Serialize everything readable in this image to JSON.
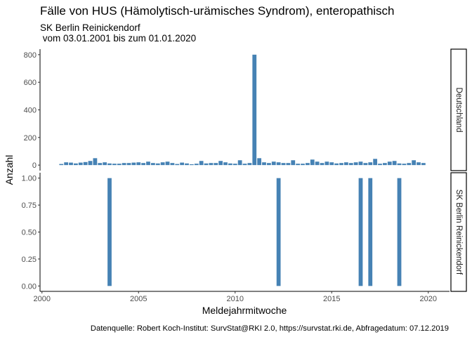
{
  "chart_data": {
    "type": "bar",
    "title": "Fälle von HUS (Hämolytisch-urämisches Syndrom), enteropathisch",
    "subtitle_line1": "SK Berlin Reinickendorf",
    "subtitle_line2": " vom 03.01.2001 bis zum 01.01.2020",
    "xlabel": "Meldejahrmitwoche",
    "ylabel": "Anzahl",
    "caption": "Datenquelle: Robert Koch-Institut: SurvStat@RKI 2.0, https://survstat.rki.de, Abfragedatum: 07.12.2019",
    "xlim": [
      1999.9,
      2021.1
    ],
    "x_ticks": [
      2000,
      2005,
      2010,
      2015,
      2020
    ],
    "x_tick_labels": [
      "2000",
      "2005",
      "2010",
      "2015",
      "2020"
    ],
    "bar_width": 0.21,
    "bar_color": "#4682b4",
    "grid": false,
    "panels": [
      {
        "strip": "Deutschland",
        "ylim": [
          -40,
          840
        ],
        "y_ticks": [
          0,
          200,
          400,
          600,
          800
        ],
        "y_tick_labels": [
          "0",
          "200",
          "400",
          "600",
          "800"
        ],
        "x": [
          2001.0,
          2001.25,
          2001.5,
          2001.75,
          2002.0,
          2002.25,
          2002.5,
          2002.75,
          2003.0,
          2003.25,
          2003.5,
          2003.75,
          2004.0,
          2004.25,
          2004.5,
          2004.75,
          2005.0,
          2005.25,
          2005.5,
          2005.75,
          2006.0,
          2006.25,
          2006.5,
          2006.75,
          2007.0,
          2007.25,
          2007.5,
          2007.75,
          2008.0,
          2008.25,
          2008.5,
          2008.75,
          2009.0,
          2009.25,
          2009.5,
          2009.75,
          2010.0,
          2010.25,
          2010.5,
          2010.75,
          2011.0,
          2011.25,
          2011.5,
          2011.75,
          2012.0,
          2012.25,
          2012.5,
          2012.75,
          2013.0,
          2013.25,
          2013.5,
          2013.75,
          2014.0,
          2014.25,
          2014.5,
          2014.75,
          2015.0,
          2015.25,
          2015.5,
          2015.75,
          2016.0,
          2016.25,
          2016.5,
          2016.75,
          2017.0,
          2017.25,
          2017.5,
          2017.75,
          2018.0,
          2018.25,
          2018.5,
          2018.75,
          2019.0,
          2019.25,
          2019.5,
          2019.75
        ],
        "values": [
          8,
          20,
          18,
          12,
          18,
          22,
          30,
          50,
          15,
          20,
          12,
          10,
          10,
          15,
          15,
          18,
          20,
          15,
          25,
          15,
          12,
          20,
          25,
          15,
          8,
          18,
          12,
          6,
          10,
          30,
          12,
          15,
          15,
          30,
          20,
          12,
          10,
          35,
          10,
          15,
          800,
          50,
          20,
          15,
          25,
          20,
          15,
          15,
          35,
          10,
          10,
          15,
          40,
          25,
          15,
          25,
          20,
          12,
          15,
          20,
          15,
          20,
          25,
          15,
          20,
          45,
          10,
          15,
          25,
          30,
          12,
          10,
          15,
          35,
          20,
          15
        ]
      },
      {
        "strip": "SK Berlin Reinickendorf",
        "ylim": [
          -0.05,
          1.05
        ],
        "y_ticks": [
          0,
          0.25,
          0.5,
          0.75,
          1
        ],
        "y_tick_labels": [
          "0.00",
          "0.25",
          "0.50",
          "0.75",
          "1.00"
        ],
        "x": [
          2003.5,
          2012.25,
          2016.5,
          2017.0,
          2018.5
        ],
        "values": [
          1,
          1,
          1,
          1,
          1
        ]
      }
    ]
  }
}
